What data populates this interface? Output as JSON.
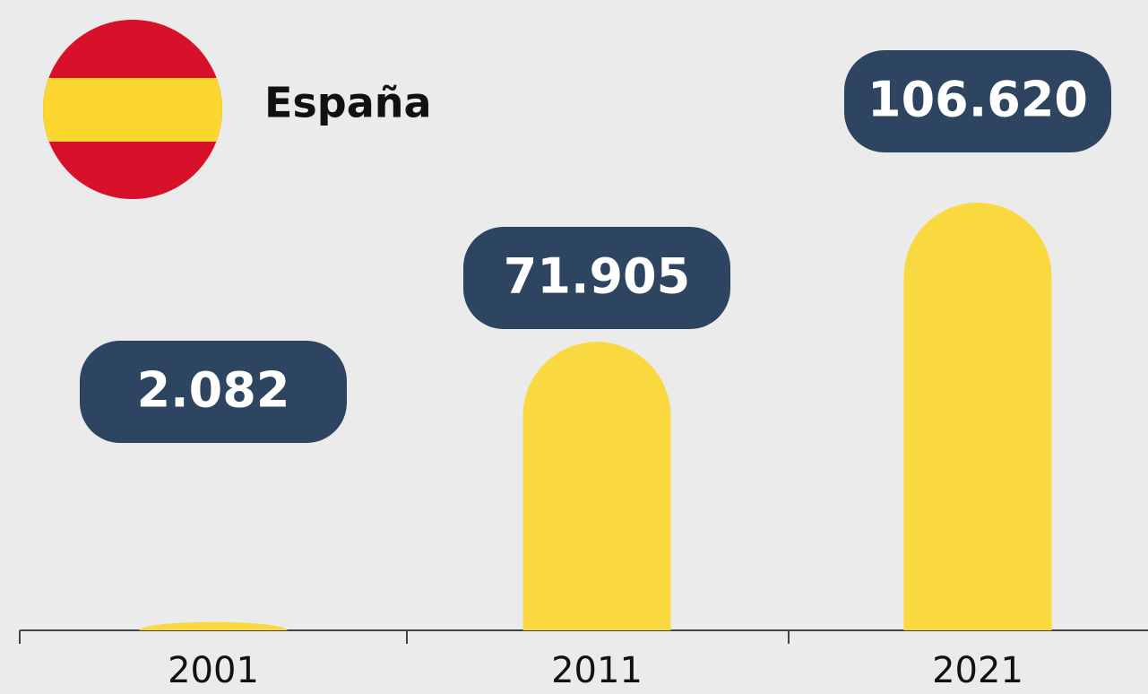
{
  "chart_data": {
    "type": "bar",
    "title": "España",
    "categories": [
      "2001",
      "2011",
      "2021"
    ],
    "values": [
      2082,
      71905,
      106620
    ],
    "value_labels": [
      "2.082",
      "71.905",
      "106.620"
    ],
    "color": "#fad940"
  }
}
